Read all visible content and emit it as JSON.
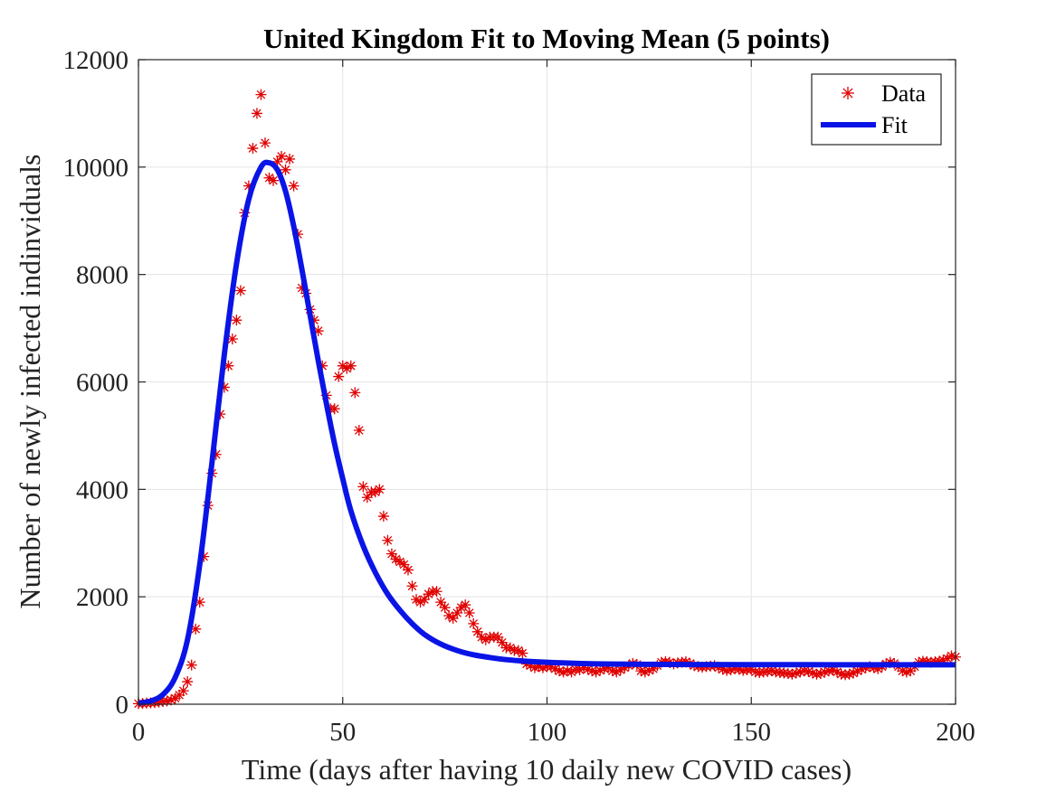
{
  "chart_data": {
    "type": "scatter",
    "title": "United Kingdom Fit to Moving Mean (5 points)",
    "xlabel": "Time (days after having 10 daily new COVID cases)",
    "ylabel": "Number of newly infected indinviduals",
    "xlim": [
      0,
      200
    ],
    "ylim": [
      0,
      12000
    ],
    "xticks": [
      0,
      50,
      100,
      150,
      200
    ],
    "yticks": [
      0,
      2000,
      4000,
      6000,
      8000,
      10000,
      12000
    ],
    "xtick_labels": [
      "0",
      "50",
      "100",
      "150",
      "200"
    ],
    "ytick_labels": [
      "0",
      "2000",
      "4000",
      "6000",
      "8000",
      "10000",
      "12000"
    ],
    "grid": true,
    "legend_position": "top-right",
    "colors": {
      "data": "#e00000",
      "fit": "#0a14e6"
    },
    "series": [
      {
        "name": "Data",
        "marker": "asterisk",
        "points": [
          [
            0,
            10
          ],
          [
            1,
            15
          ],
          [
            2,
            20
          ],
          [
            3,
            25
          ],
          [
            4,
            30
          ],
          [
            5,
            40
          ],
          [
            6,
            50
          ],
          [
            7,
            60
          ],
          [
            8,
            80
          ],
          [
            9,
            110
          ],
          [
            10,
            170
          ],
          [
            11,
            250
          ],
          [
            12,
            420
          ],
          [
            13,
            730
          ],
          [
            14,
            1400
          ],
          [
            15,
            1900
          ],
          [
            16,
            2750
          ],
          [
            17,
            3700
          ],
          [
            18,
            4300
          ],
          [
            19,
            4650
          ],
          [
            20,
            5400
          ],
          [
            21,
            5900
          ],
          [
            22,
            6300
          ],
          [
            23,
            6800
          ],
          [
            24,
            7150
          ],
          [
            25,
            7700
          ],
          [
            26,
            9150
          ],
          [
            27,
            9650
          ],
          [
            28,
            10350
          ],
          [
            29,
            11000
          ],
          [
            30,
            11350
          ],
          [
            31,
            10450
          ],
          [
            32,
            9800
          ],
          [
            33,
            9750
          ],
          [
            34,
            10100
          ],
          [
            35,
            10200
          ],
          [
            36,
            9950
          ],
          [
            37,
            10150
          ],
          [
            38,
            9650
          ],
          [
            39,
            8750
          ],
          [
            40,
            7750
          ],
          [
            41,
            7650
          ],
          [
            42,
            7350
          ],
          [
            43,
            7150
          ],
          [
            44,
            6950
          ],
          [
            45,
            6300
          ],
          [
            46,
            5750
          ],
          [
            47,
            5500
          ],
          [
            48,
            5500
          ],
          [
            49,
            6100
          ],
          [
            50,
            6300
          ],
          [
            51,
            6250
          ],
          [
            52,
            6300
          ],
          [
            53,
            5800
          ],
          [
            54,
            5100
          ],
          [
            55,
            4050
          ],
          [
            56,
            3850
          ],
          [
            57,
            3950
          ],
          [
            58,
            3950
          ],
          [
            59,
            4000
          ],
          [
            60,
            3500
          ],
          [
            61,
            3050
          ],
          [
            62,
            2800
          ],
          [
            63,
            2700
          ],
          [
            64,
            2650
          ],
          [
            65,
            2600
          ],
          [
            66,
            2500
          ],
          [
            67,
            2200
          ],
          [
            68,
            1950
          ],
          [
            69,
            1900
          ],
          [
            70,
            1950
          ],
          [
            71,
            2050
          ],
          [
            72,
            2100
          ],
          [
            73,
            2100
          ],
          [
            74,
            1900
          ],
          [
            75,
            1800
          ],
          [
            76,
            1650
          ],
          [
            77,
            1600
          ],
          [
            78,
            1700
          ],
          [
            79,
            1800
          ],
          [
            80,
            1850
          ],
          [
            81,
            1700
          ],
          [
            82,
            1500
          ],
          [
            83,
            1350
          ],
          [
            84,
            1250
          ],
          [
            85,
            1200
          ],
          [
            86,
            1250
          ],
          [
            87,
            1250
          ],
          [
            88,
            1250
          ],
          [
            89,
            1150
          ],
          [
            90,
            1050
          ],
          [
            91,
            1050
          ],
          [
            92,
            1000
          ],
          [
            93,
            1000
          ],
          [
            94,
            950
          ],
          [
            95,
            750
          ],
          [
            96,
            720
          ],
          [
            97,
            680
          ],
          [
            98,
            700
          ],
          [
            99,
            680
          ],
          [
            100,
            700
          ],
          [
            101,
            700
          ],
          [
            102,
            660
          ],
          [
            103,
            620
          ],
          [
            104,
            600
          ],
          [
            105,
            620
          ],
          [
            106,
            600
          ],
          [
            107,
            650
          ],
          [
            108,
            640
          ],
          [
            109,
            680
          ],
          [
            110,
            650
          ],
          [
            111,
            620
          ],
          [
            112,
            600
          ],
          [
            113,
            630
          ],
          [
            114,
            660
          ],
          [
            115,
            680
          ],
          [
            116,
            620
          ],
          [
            117,
            600
          ],
          [
            118,
            640
          ],
          [
            119,
            680
          ],
          [
            120,
            720
          ],
          [
            121,
            760
          ],
          [
            122,
            740
          ],
          [
            123,
            620
          ],
          [
            124,
            600
          ],
          [
            125,
            630
          ],
          [
            126,
            660
          ],
          [
            127,
            720
          ],
          [
            128,
            780
          ],
          [
            129,
            790
          ],
          [
            130,
            780
          ],
          [
            131,
            750
          ],
          [
            132,
            770
          ],
          [
            133,
            780
          ],
          [
            134,
            790
          ],
          [
            135,
            760
          ],
          [
            136,
            720
          ],
          [
            137,
            700
          ],
          [
            138,
            690
          ],
          [
            139,
            700
          ],
          [
            140,
            710
          ],
          [
            141,
            720
          ],
          [
            142,
            680
          ],
          [
            143,
            650
          ],
          [
            144,
            630
          ],
          [
            145,
            640
          ],
          [
            146,
            660
          ],
          [
            147,
            650
          ],
          [
            148,
            630
          ],
          [
            149,
            640
          ],
          [
            150,
            650
          ],
          [
            151,
            600
          ],
          [
            152,
            590
          ],
          [
            153,
            600
          ],
          [
            154,
            610
          ],
          [
            155,
            620
          ],
          [
            156,
            600
          ],
          [
            157,
            590
          ],
          [
            158,
            580
          ],
          [
            159,
            570
          ],
          [
            160,
            560
          ],
          [
            161,
            580
          ],
          [
            162,
            600
          ],
          [
            163,
            620
          ],
          [
            164,
            610
          ],
          [
            165,
            580
          ],
          [
            166,
            560
          ],
          [
            167,
            570
          ],
          [
            168,
            600
          ],
          [
            169,
            620
          ],
          [
            170,
            640
          ],
          [
            171,
            600
          ],
          [
            172,
            560
          ],
          [
            173,
            550
          ],
          [
            174,
            560
          ],
          [
            175,
            580
          ],
          [
            176,
            620
          ],
          [
            177,
            650
          ],
          [
            178,
            680
          ],
          [
            179,
            700
          ],
          [
            180,
            680
          ],
          [
            181,
            660
          ],
          [
            182,
            700
          ],
          [
            183,
            750
          ],
          [
            184,
            780
          ],
          [
            185,
            760
          ],
          [
            186,
            700
          ],
          [
            187,
            620
          ],
          [
            188,
            600
          ],
          [
            189,
            620
          ],
          [
            190,
            700
          ],
          [
            191,
            780
          ],
          [
            192,
            800
          ],
          [
            193,
            790
          ],
          [
            194,
            780
          ],
          [
            195,
            790
          ],
          [
            196,
            800
          ],
          [
            197,
            820
          ],
          [
            198,
            850
          ],
          [
            199,
            900
          ],
          [
            200,
            880
          ]
        ]
      },
      {
        "name": "Fit",
        "marker": "line",
        "points": [
          [
            0,
            20
          ],
          [
            3,
            60
          ],
          [
            6,
            180
          ],
          [
            9,
            500
          ],
          [
            12,
            1200
          ],
          [
            15,
            2600
          ],
          [
            18,
            4500
          ],
          [
            21,
            6500
          ],
          [
            24,
            8200
          ],
          [
            27,
            9400
          ],
          [
            30,
            10000
          ],
          [
            32,
            10080
          ],
          [
            34,
            9950
          ],
          [
            36,
            9550
          ],
          [
            38,
            8900
          ],
          [
            40,
            8100
          ],
          [
            42,
            7250
          ],
          [
            44,
            6400
          ],
          [
            46,
            5600
          ],
          [
            48,
            4850
          ],
          [
            50,
            4200
          ],
          [
            52,
            3600
          ],
          [
            55,
            2950
          ],
          [
            58,
            2450
          ],
          [
            61,
            2050
          ],
          [
            64,
            1750
          ],
          [
            67,
            1500
          ],
          [
            70,
            1300
          ],
          [
            74,
            1120
          ],
          [
            78,
            1000
          ],
          [
            82,
            920
          ],
          [
            86,
            870
          ],
          [
            90,
            830
          ],
          [
            95,
            800
          ],
          [
            100,
            780
          ],
          [
            110,
            755
          ],
          [
            120,
            745
          ],
          [
            130,
            740
          ],
          [
            140,
            738
          ],
          [
            150,
            737
          ],
          [
            160,
            736
          ],
          [
            170,
            735
          ],
          [
            180,
            735
          ],
          [
            190,
            735
          ],
          [
            200,
            735
          ]
        ]
      }
    ]
  }
}
